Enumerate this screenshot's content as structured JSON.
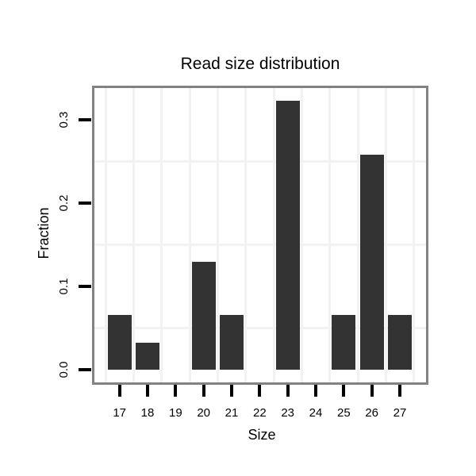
{
  "title": "Read size distribution",
  "chart_data": {
    "type": "bar",
    "title": "Read size distribution",
    "xlabel": "Size",
    "ylabel": "Fraction",
    "categories": [
      "17",
      "18",
      "19",
      "20",
      "21",
      "22",
      "23",
      "24",
      "25",
      "26",
      "27"
    ],
    "values": [
      0.065,
      0.032,
      0,
      0.129,
      0.065,
      0,
      0.323,
      0,
      0.065,
      0.258,
      0.065
    ],
    "y_ticks": [
      0.0,
      0.1,
      0.2,
      0.3
    ],
    "y_tick_labels": [
      "0.0",
      "0.1",
      "0.2",
      "0.3"
    ],
    "ylim": [
      -0.016,
      0.34
    ],
    "grid": "minor gridlines only: vertical between categories, horizontal at 0.05/0.15/0.25",
    "minor_gridlines_y": [
      0.05,
      0.15,
      0.25
    ],
    "legend": "none",
    "colors": {
      "bar": "#333333",
      "frame": "#828282",
      "tick": "#000000",
      "gridline": "#f2f2f2",
      "background": "#ffffff",
      "text": "#000000"
    }
  }
}
